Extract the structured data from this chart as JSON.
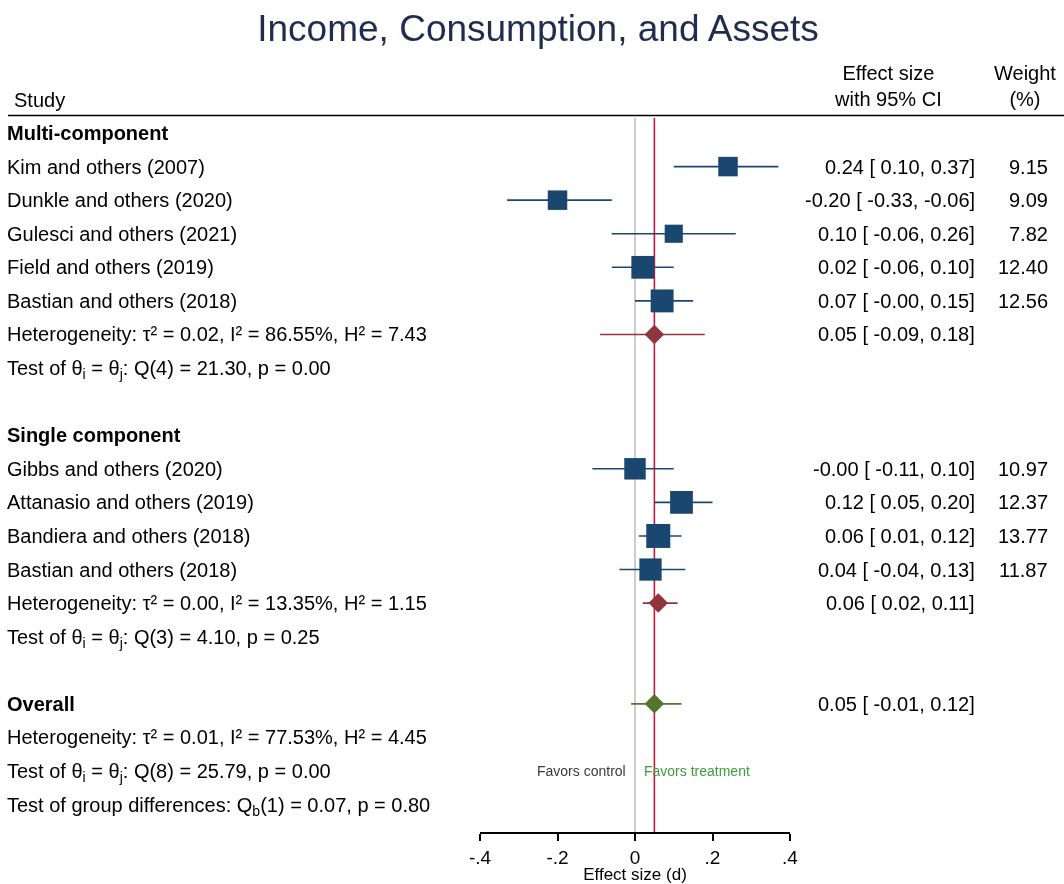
{
  "chart_data": {
    "type": "scatter",
    "orientation": "horizontal",
    "title": "Income, Consumption, and Assets",
    "xlabel": "Effect size (d)",
    "categories": [
      "Multi-component",
      "Kim and others (2007)",
      "Dunkle and others (2020)",
      "Gulesci and others (2021)",
      "Field and others (2019)",
      "Bastian and others (2018)",
      "Heterogeneity: τ² = 0.02, I² = 86.55%, H² = 7.43",
      "Test of θ$_{i}$ = θ$_{j}$: Q(4) = 21.30, p = 0.00",
      null,
      "Single component",
      "Gibbs and others (2020)",
      "Attanasio and others (2019)",
      "Bandiera and others (2018)",
      "Bastian and others (2018)",
      "Heterogeneity: τ² = 0.00, I² = 13.35%, H² = 1.15",
      "Test of θ$_{i}$ = θ$_{j}$: Q(3) = 4.10, p = 0.25",
      null,
      "Overall",
      "Heterogeneity: τ² = 0.01, I² = 77.53%, H² = 4.45",
      "Test of θ$_{i}$ = θ$_{j}$: Q(8) = 25.79, p = 0.00",
      "Test of group differences: Q$_{b}$(1) = 0.07, p = 0.80"
    ],
    "y2_categories": [
      null,
      "9.15",
      "9.09",
      "7.82",
      "12.40",
      "12.56",
      null,
      null,
      null,
      null,
      "10.97",
      "12.37",
      "13.77",
      "11.87",
      null,
      null,
      null,
      null,
      null,
      null,
      null
    ],
    "series": [
      {
        "colors": [
          null,
          "#1a476f",
          "#1a476f",
          "#1a476f",
          "#1a476f",
          "#1a476f",
          "#90353b",
          null,
          null,
          null,
          "#1a476f",
          "#1a476f",
          "#1a476f",
          "#1a476f",
          "#90353b",
          null,
          null,
          "#55752f",
          null,
          null,
          null
        ],
        "marker": [
          null,
          "square",
          "square",
          "square",
          "square",
          "square",
          "diamond",
          null,
          null,
          null,
          "square",
          "square",
          "square",
          "square",
          "diamond",
          null,
          null,
          "diamond",
          null,
          null,
          null
        ],
        "values": [
          null,
          0.24,
          -0.2,
          0.1,
          0.02,
          0.07,
          0.05,
          null,
          null,
          null,
          0,
          0.12,
          0.06,
          0.04,
          0.06,
          null,
          null,
          0.05,
          null,
          null,
          null
        ],
        "errors": [
          null,
          [
            0.1,
            0.37
          ],
          [
            -0.33,
            -0.06
          ],
          [
            -0.06,
            0.26
          ],
          [
            -0.06,
            0.1
          ],
          [
            0,
            0.15
          ],
          [
            -0.09,
            0.18
          ],
          null,
          null,
          null,
          [
            -0.11,
            0.1
          ],
          [
            0.05,
            0.2
          ],
          [
            0.01,
            0.12
          ],
          [
            -0.04,
            0.13
          ],
          [
            0.02,
            0.11
          ],
          null,
          null,
          [
            -0.01,
            0.12
          ],
          null,
          null,
          null
        ],
        "sizes": [
          null,
          0.66,
          0.66,
          0.57,
          0.9,
          0.91,
          null,
          null,
          null,
          null,
          0.8,
          0.9,
          1,
          0.86,
          null,
          null,
          null,
          null,
          null,
          null,
          null
        ],
        "value_labels": [
          null,
          "0.24 [ 0.10, 0.37]",
          "-0.20 [ -0.33, -0.06]",
          "0.10 [ -0.06, 0.26]",
          "0.02 [ -0.06, 0.10]",
          "0.07 [ -0.00, 0.15]",
          "0.05 [ -0.09, 0.18]",
          null,
          null,
          null,
          "-0.00 [ -0.11, 0.10]",
          "0.12 [ 0.05, 0.20]",
          "0.06 [ 0.01, 0.12]",
          "0.04 [ -0.04, 0.13]",
          "0.06 [ 0.02, 0.11]",
          null,
          null,
          "0.05 [ -0.01, 0.12]",
          null,
          null,
          null
        ]
      }
    ],
    "xlim": [
      -0.4,
      0.4
    ],
    "xticks": [
      {
        "value": -0.4,
        "label": "-.4"
      },
      {
        "value": -0.2,
        "label": "-.2"
      },
      0,
      {
        "value": 0.2,
        "label": ".2"
      },
      {
        "value": 0.4,
        "label": ".4"
      }
    ],
    "ref_lines": [
      {
        "axis": "x",
        "value": 0,
        "color": "#c0c0c0"
      },
      {
        "axis": "x",
        "value": 0.05,
        "color": "#c8193c"
      }
    ],
    "annotations": [
      "Study",
      "Effect size\nwith 95% CI",
      "Weight\n(%)",
      {
        "text": "Favors control",
        "x": 0,
        "y": "Test of θ$_{i}$ = θ$_{j}$: Q(8) = 25.79, p = 0.00"
      },
      {
        "text": "Favors treatment",
        "x": 0,
        "y": "Test of θ$_{i}$ = θ$_{j}$: Q(8) = 25.79, p = 0.00"
      }
    ]
  }
}
